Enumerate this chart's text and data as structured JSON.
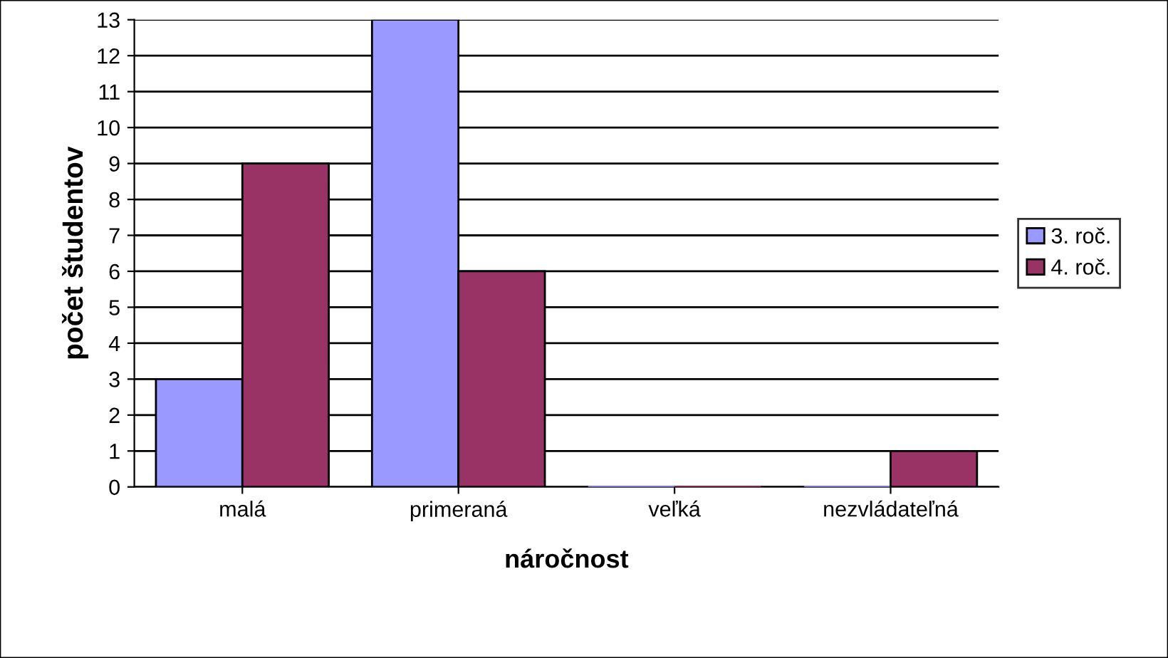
{
  "chart_data": {
    "type": "bar",
    "xlabel": "náročnost",
    "ylabel": "počet študentov",
    "categories": [
      "malá",
      "primeraná",
      "veľká",
      "nezvládateľná"
    ],
    "series": [
      {
        "name": "3. roč.",
        "color": "#9999ff",
        "values": [
          3,
          13,
          0,
          0
        ]
      },
      {
        "name": "4. roč.",
        "color": "#993366",
        "values": [
          9,
          6,
          0,
          1
        ]
      }
    ],
    "ylim": [
      0,
      13
    ],
    "yticks": [
      0,
      1,
      2,
      3,
      4,
      5,
      6,
      7,
      8,
      9,
      10,
      11,
      12,
      13
    ],
    "grid": "y",
    "legend": "right"
  }
}
